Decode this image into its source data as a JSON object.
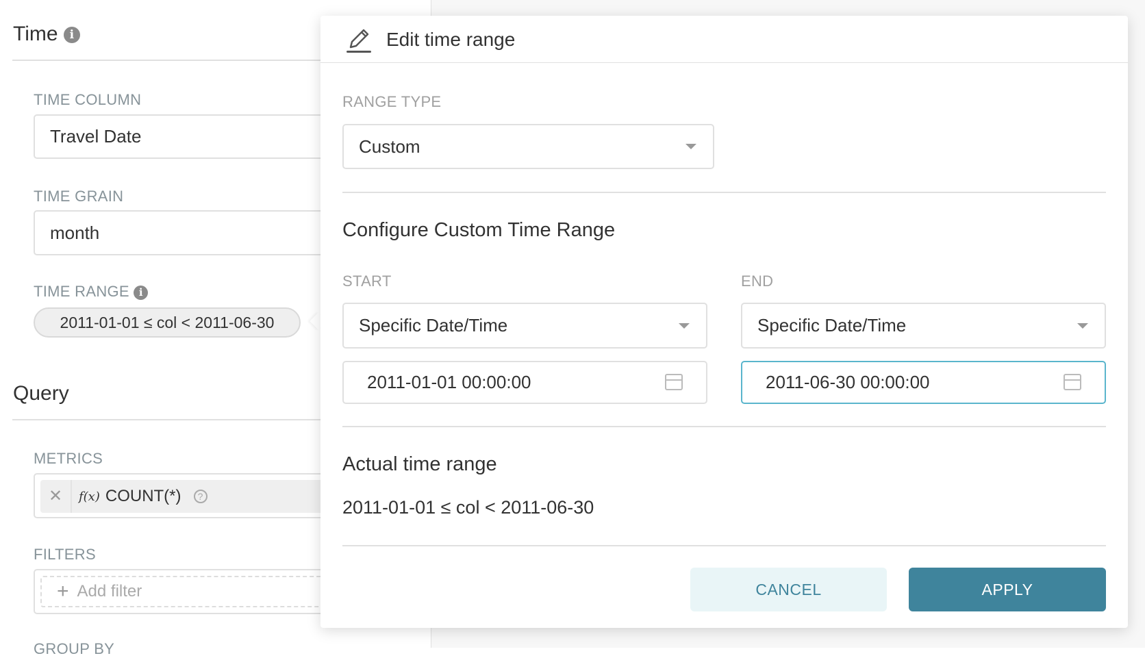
{
  "sidebar": {
    "time_section": {
      "title": "Time",
      "info_icon": "info-icon"
    },
    "time_column": {
      "label": "TIME COLUMN",
      "value": "Travel Date"
    },
    "time_grain": {
      "label": "TIME GRAIN",
      "value": "month"
    },
    "time_range": {
      "label": "TIME RANGE",
      "value": "2011-01-01 ≤ col < 2011-06-30"
    },
    "query_section": {
      "title": "Query"
    },
    "metrics": {
      "label": "METRICS",
      "items": [
        {
          "fx": "f(x)",
          "value": "COUNT(*)"
        }
      ]
    },
    "filters": {
      "label": "FILTERS",
      "add_label": "Add filter"
    },
    "group_by": {
      "label": "GROUP BY"
    }
  },
  "popover": {
    "title": "Edit time range",
    "range_type": {
      "label": "RANGE TYPE",
      "value": "Custom"
    },
    "configure_heading": "Configure Custom Time Range",
    "start": {
      "label": "START",
      "mode": "Specific Date/Time",
      "datetime": "2011-01-01 00:00:00"
    },
    "end": {
      "label": "END",
      "mode": "Specific Date/Time",
      "datetime": "2011-06-30 00:00:00"
    },
    "actual": {
      "heading": "Actual time range",
      "value": "2011-01-01 ≤ col < 2011-06-30"
    },
    "cancel_label": "CANCEL",
    "apply_label": "APPLY"
  },
  "colors": {
    "primary": "#3f849c",
    "primary_light": "#e9f5f7",
    "focus_border": "#5ab5cc"
  }
}
